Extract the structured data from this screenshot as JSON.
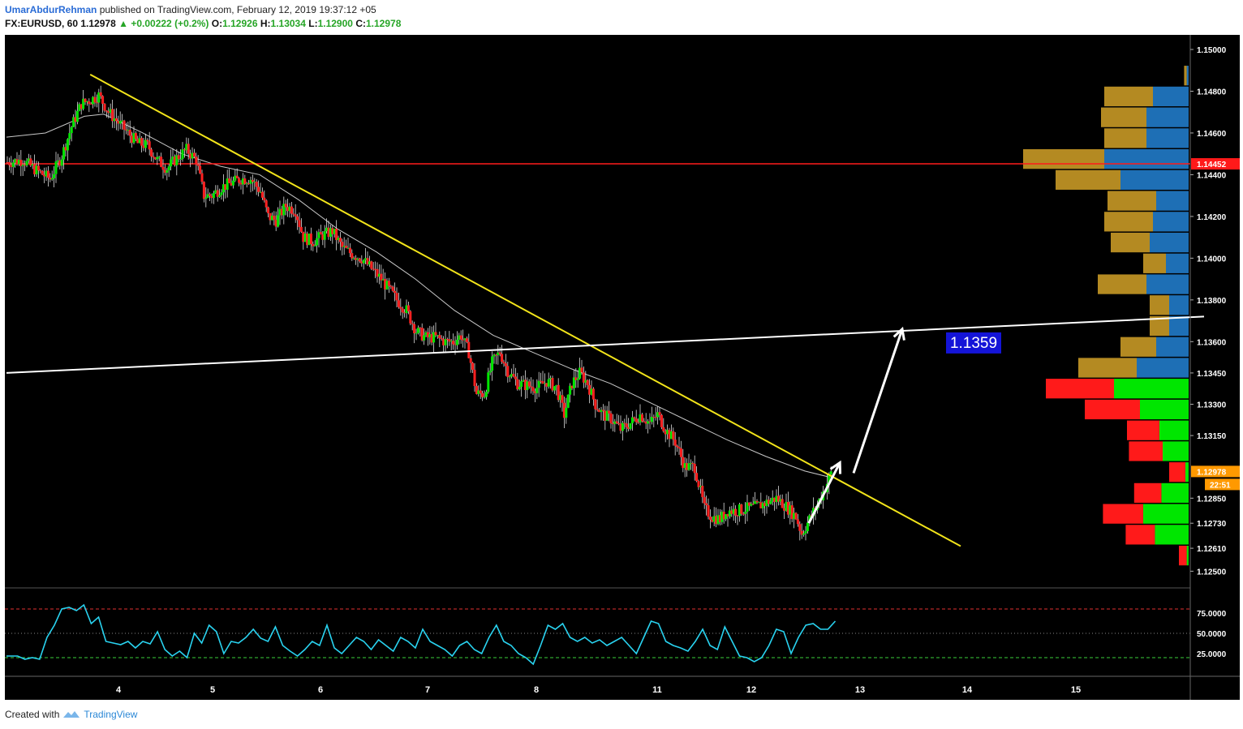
{
  "header": {
    "author": "UmarAbdurRehman",
    "published_text": "published on TradingView.com, February 12, 2019 19:37:12 +05",
    "symbol": "FX:EURUSD, 60",
    "last": "1.12978",
    "change": "+0.00222 (+0.2%)",
    "o_label": "O:",
    "o_value": "1.12926",
    "h_label": "H:",
    "h_value": "1.13034",
    "l_label": "L:",
    "l_value": "1.12900",
    "c_label": "C:",
    "c_value": "1.12978"
  },
  "footer": {
    "created_with": "Created with",
    "brand": "TradingView"
  },
  "colors": {
    "background": "#000000",
    "bull": "#00e600",
    "bear": "#ff2020",
    "trendline": "#f2e41a",
    "support_line": "#ffffff",
    "ma": "#c8c8c8",
    "resistance": "#ff1a1a",
    "rsi": "#29d3f0",
    "vp_up": "#1e6fb5",
    "vp_down": "#b48a22",
    "vp_up_va": "#00e600",
    "vp_down_va": "#ff1a1a"
  },
  "chart_data": {
    "type": "candlestick",
    "symbol": "FX:EURUSD",
    "timeframe": "60",
    "x_ticks": [
      "4",
      "5",
      "6",
      "7",
      "8",
      "11",
      "12",
      "13",
      "14",
      "15"
    ],
    "y_ticks": [
      "1.15000",
      "1.14800",
      "1.14600",
      "1.14400",
      "1.14200",
      "1.14000",
      "1.13800",
      "1.13600",
      "1.13450",
      "1.13300",
      "1.13150",
      "1.12850",
      "1.12730",
      "1.12610",
      "1.12500"
    ],
    "ylim": [
      1.1242,
      1.1507
    ],
    "price_path": [
      [
        0,
        1.1446
      ],
      [
        8,
        1.1447
      ],
      [
        15,
        1.1442
      ],
      [
        22,
        1.1438
      ],
      [
        28,
        1.1449
      ],
      [
        33,
        1.1463
      ],
      [
        38,
        1.1474
      ],
      [
        43,
        1.1476
      ],
      [
        47,
        1.1478
      ],
      [
        52,
        1.147
      ],
      [
        57,
        1.1465
      ],
      [
        62,
        1.146
      ],
      [
        67,
        1.1455
      ],
      [
        72,
        1.1454
      ],
      [
        77,
        1.1447
      ],
      [
        82,
        1.1443
      ],
      [
        87,
        1.1448
      ],
      [
        92,
        1.1452
      ],
      [
        97,
        1.1447
      ],
      [
        101,
        1.143
      ],
      [
        105,
        1.143
      ],
      [
        110,
        1.1434
      ],
      [
        115,
        1.1436
      ],
      [
        120,
        1.1438
      ],
      [
        125,
        1.1438
      ],
      [
        130,
        1.1432
      ],
      [
        134,
        1.142
      ],
      [
        138,
        1.1418
      ],
      [
        143,
        1.1425
      ],
      [
        148,
        1.1423
      ],
      [
        152,
        1.141
      ],
      [
        157,
        1.1408
      ],
      [
        162,
        1.1411
      ],
      [
        167,
        1.1413
      ],
      [
        172,
        1.1405
      ],
      [
        177,
        1.1402
      ],
      [
        182,
        1.14
      ],
      [
        187,
        1.1395
      ],
      [
        192,
        1.139
      ],
      [
        196,
        1.1385
      ],
      [
        200,
        1.138
      ],
      [
        205,
        1.1375
      ],
      [
        210,
        1.1365
      ],
      [
        215,
        1.1362
      ],
      [
        220,
        1.1362
      ],
      [
        225,
        1.136
      ],
      [
        229,
        1.136
      ],
      [
        233,
        1.1363
      ],
      [
        237,
        1.1355
      ],
      [
        241,
        1.1335
      ],
      [
        245,
        1.1335
      ],
      [
        249,
        1.135
      ],
      [
        253,
        1.1355
      ],
      [
        257,
        1.1346
      ],
      [
        262,
        1.134
      ],
      [
        267,
        1.1339
      ],
      [
        272,
        1.1338
      ],
      [
        277,
        1.1341
      ],
      [
        282,
        1.1338
      ],
      [
        286,
        1.1325
      ],
      [
        290,
        1.134
      ],
      [
        294,
        1.1345
      ],
      [
        298,
        1.134
      ],
      [
        302,
        1.133
      ],
      [
        306,
        1.1325
      ],
      [
        310,
        1.1323
      ],
      [
        315,
        1.1318
      ],
      [
        320,
        1.1321
      ],
      [
        325,
        1.1325
      ],
      [
        330,
        1.1321
      ],
      [
        334,
        1.1325
      ],
      [
        338,
        1.1318
      ],
      [
        343,
        1.1312
      ],
      [
        348,
        1.13
      ],
      [
        353,
        1.13
      ],
      [
        358,
        1.128
      ],
      [
        362,
        1.1276
      ],
      [
        366,
        1.1275
      ],
      [
        370,
        1.1279
      ],
      [
        375,
        1.1279
      ],
      [
        380,
        1.128
      ],
      [
        385,
        1.1281
      ],
      [
        390,
        1.1283
      ],
      [
        395,
        1.1285
      ],
      [
        400,
        1.1281
      ],
      [
        405,
        1.1276
      ],
      [
        408,
        1.1268
      ],
      [
        412,
        1.1275
      ],
      [
        416,
        1.1282
      ],
      [
        420,
        1.129
      ],
      [
        423,
        1.1297
      ]
    ],
    "moving_average": [
      [
        0,
        1.1458
      ],
      [
        20,
        1.146
      ],
      [
        40,
        1.1468
      ],
      [
        50,
        1.1469
      ],
      [
        70,
        1.146
      ],
      [
        90,
        1.145
      ],
      [
        110,
        1.1444
      ],
      [
        130,
        1.144
      ],
      [
        150,
        1.1428
      ],
      [
        170,
        1.1414
      ],
      [
        190,
        1.1403
      ],
      [
        210,
        1.139
      ],
      [
        230,
        1.1375
      ],
      [
        250,
        1.1363
      ],
      [
        270,
        1.1355
      ],
      [
        290,
        1.1347
      ],
      [
        310,
        1.134
      ],
      [
        330,
        1.1331
      ],
      [
        350,
        1.1322
      ],
      [
        370,
        1.1313
      ],
      [
        390,
        1.1305
      ],
      [
        410,
        1.1298
      ],
      [
        423,
        1.1295
      ]
    ],
    "trendline_down": {
      "from": [
        43,
        1.1488
      ],
      "to": [
        490,
        1.1262
      ]
    },
    "support_line": {
      "from": [
        0,
        1.1345
      ],
      "to": [
        615,
        1.1372
      ]
    },
    "resistance_level": 1.14452,
    "resistance_label": "1.14452",
    "current_price": "1.12978",
    "countdown": "22:51",
    "target_label": "1.1359",
    "arrows": [
      {
        "from": [
          412,
          1.1273
        ],
        "to": [
          428,
          1.1302
        ]
      },
      {
        "from": [
          435,
          1.1297
        ],
        "to": [
          460,
          1.1366
        ]
      }
    ],
    "volume_profile": [
      {
        "price": 1.14875,
        "up": 0.03,
        "down": 0.04,
        "value_area": false
      },
      {
        "price": 1.14775,
        "up": 0.55,
        "down": 0.75,
        "value_area": false
      },
      {
        "price": 1.14675,
        "up": 0.65,
        "down": 0.7,
        "value_area": false
      },
      {
        "price": 1.14575,
        "up": 0.65,
        "down": 0.65,
        "value_area": false
      },
      {
        "price": 1.14475,
        "up": 1.3,
        "down": 1.25,
        "value_area": false
      },
      {
        "price": 1.14375,
        "up": 1.05,
        "down": 1.0,
        "value_area": false
      },
      {
        "price": 1.14275,
        "up": 0.5,
        "down": 0.75,
        "value_area": false
      },
      {
        "price": 1.14175,
        "up": 0.55,
        "down": 0.75,
        "value_area": false
      },
      {
        "price": 1.14075,
        "up": 0.6,
        "down": 0.6,
        "value_area": false
      },
      {
        "price": 1.13975,
        "up": 0.35,
        "down": 0.35,
        "value_area": false
      },
      {
        "price": 1.13875,
        "up": 0.65,
        "down": 0.75,
        "value_area": false
      },
      {
        "price": 1.13775,
        "up": 0.3,
        "down": 0.3,
        "value_area": false
      },
      {
        "price": 1.13675,
        "up": 0.3,
        "down": 0.3,
        "value_area": false
      },
      {
        "price": 1.13575,
        "up": 0.5,
        "down": 0.55,
        "value_area": false
      },
      {
        "price": 1.13475,
        "up": 0.8,
        "down": 0.9,
        "value_area": false
      },
      {
        "price": 1.13375,
        "up": 1.15,
        "down": 1.05,
        "value_area": true
      },
      {
        "price": 1.13275,
        "up": 0.75,
        "down": 0.85,
        "value_area": true
      },
      {
        "price": 1.13175,
        "up": 0.45,
        "down": 0.5,
        "value_area": true
      },
      {
        "price": 1.13075,
        "up": 0.4,
        "down": 0.52,
        "value_area": true
      },
      {
        "price": 1.12975,
        "up": 0.05,
        "down": 0.25,
        "value_area": true
      },
      {
        "price": 1.12875,
        "up": 0.42,
        "down": 0.42,
        "value_area": true
      },
      {
        "price": 1.12775,
        "up": 0.7,
        "down": 0.62,
        "value_area": true
      },
      {
        "price": 1.12675,
        "up": 0.52,
        "down": 0.45,
        "value_area": true
      },
      {
        "price": 1.12575,
        "up": 0.03,
        "down": 0.12,
        "value_area": true
      }
    ],
    "rsi": {
      "y_ticks": [
        "75.0000",
        "50.0000",
        "25.0000"
      ],
      "ylim": [
        0,
        100
      ],
      "overbought": 80,
      "oversold": 20,
      "values": [
        [
          0,
          22
        ],
        [
          6,
          22
        ],
        [
          10,
          18
        ],
        [
          14,
          20
        ],
        [
          18,
          18
        ],
        [
          22,
          45
        ],
        [
          26,
          60
        ],
        [
          30,
          80
        ],
        [
          34,
          82
        ],
        [
          38,
          78
        ],
        [
          42,
          85
        ],
        [
          46,
          62
        ],
        [
          50,
          70
        ],
        [
          54,
          40
        ],
        [
          58,
          38
        ],
        [
          62,
          36
        ],
        [
          66,
          40
        ],
        [
          70,
          32
        ],
        [
          74,
          40
        ],
        [
          78,
          37
        ],
        [
          82,
          52
        ],
        [
          86,
          30
        ],
        [
          90,
          22
        ],
        [
          94,
          28
        ],
        [
          98,
          20
        ],
        [
          102,
          50
        ],
        [
          106,
          38
        ],
        [
          110,
          60
        ],
        [
          114,
          52
        ],
        [
          118,
          25
        ],
        [
          122,
          40
        ],
        [
          126,
          38
        ],
        [
          130,
          45
        ],
        [
          134,
          55
        ],
        [
          138,
          44
        ],
        [
          142,
          40
        ],
        [
          146,
          58
        ],
        [
          150,
          35
        ],
        [
          154,
          28
        ],
        [
          158,
          22
        ],
        [
          162,
          30
        ],
        [
          166,
          40
        ],
        [
          170,
          35
        ],
        [
          174,
          60
        ],
        [
          178,
          32
        ],
        [
          182,
          25
        ],
        [
          186,
          35
        ],
        [
          190,
          45
        ],
        [
          194,
          40
        ],
        [
          198,
          30
        ],
        [
          202,
          42
        ],
        [
          206,
          35
        ],
        [
          210,
          28
        ],
        [
          214,
          45
        ],
        [
          218,
          40
        ],
        [
          222,
          32
        ],
        [
          226,
          55
        ],
        [
          230,
          40
        ],
        [
          234,
          35
        ],
        [
          238,
          30
        ],
        [
          242,
          22
        ],
        [
          246,
          35
        ],
        [
          250,
          40
        ],
        [
          254,
          30
        ],
        [
          258,
          25
        ],
        [
          262,
          45
        ],
        [
          266,
          60
        ],
        [
          270,
          40
        ],
        [
          274,
          35
        ],
        [
          278,
          25
        ],
        [
          282,
          20
        ],
        [
          286,
          12
        ],
        [
          290,
          35
        ],
        [
          294,
          60
        ],
        [
          298,
          55
        ],
        [
          302,
          62
        ],
        [
          306,
          45
        ],
        [
          310,
          40
        ],
        [
          314,
          45
        ],
        [
          318,
          38
        ],
        [
          322,
          42
        ],
        [
          326,
          35
        ],
        [
          330,
          40
        ],
        [
          334,
          45
        ],
        [
          338,
          35
        ],
        [
          342,
          25
        ],
        [
          346,
          45
        ],
        [
          350,
          65
        ],
        [
          354,
          62
        ],
        [
          358,
          40
        ],
        [
          362,
          35
        ],
        [
          366,
          32
        ],
        [
          370,
          28
        ],
        [
          374,
          40
        ],
        [
          378,
          55
        ],
        [
          382,
          35
        ],
        [
          386,
          30
        ],
        [
          390,
          58
        ],
        [
          394,
          40
        ],
        [
          398,
          22
        ],
        [
          402,
          20
        ],
        [
          406,
          15
        ],
        [
          410,
          20
        ],
        [
          414,
          35
        ],
        [
          418,
          55
        ],
        [
          422,
          52
        ],
        [
          426,
          25
        ],
        [
          430,
          45
        ],
        [
          434,
          60
        ],
        [
          438,
          62
        ],
        [
          442,
          55
        ],
        [
          446,
          55
        ],
        [
          450,
          65
        ]
      ]
    }
  }
}
